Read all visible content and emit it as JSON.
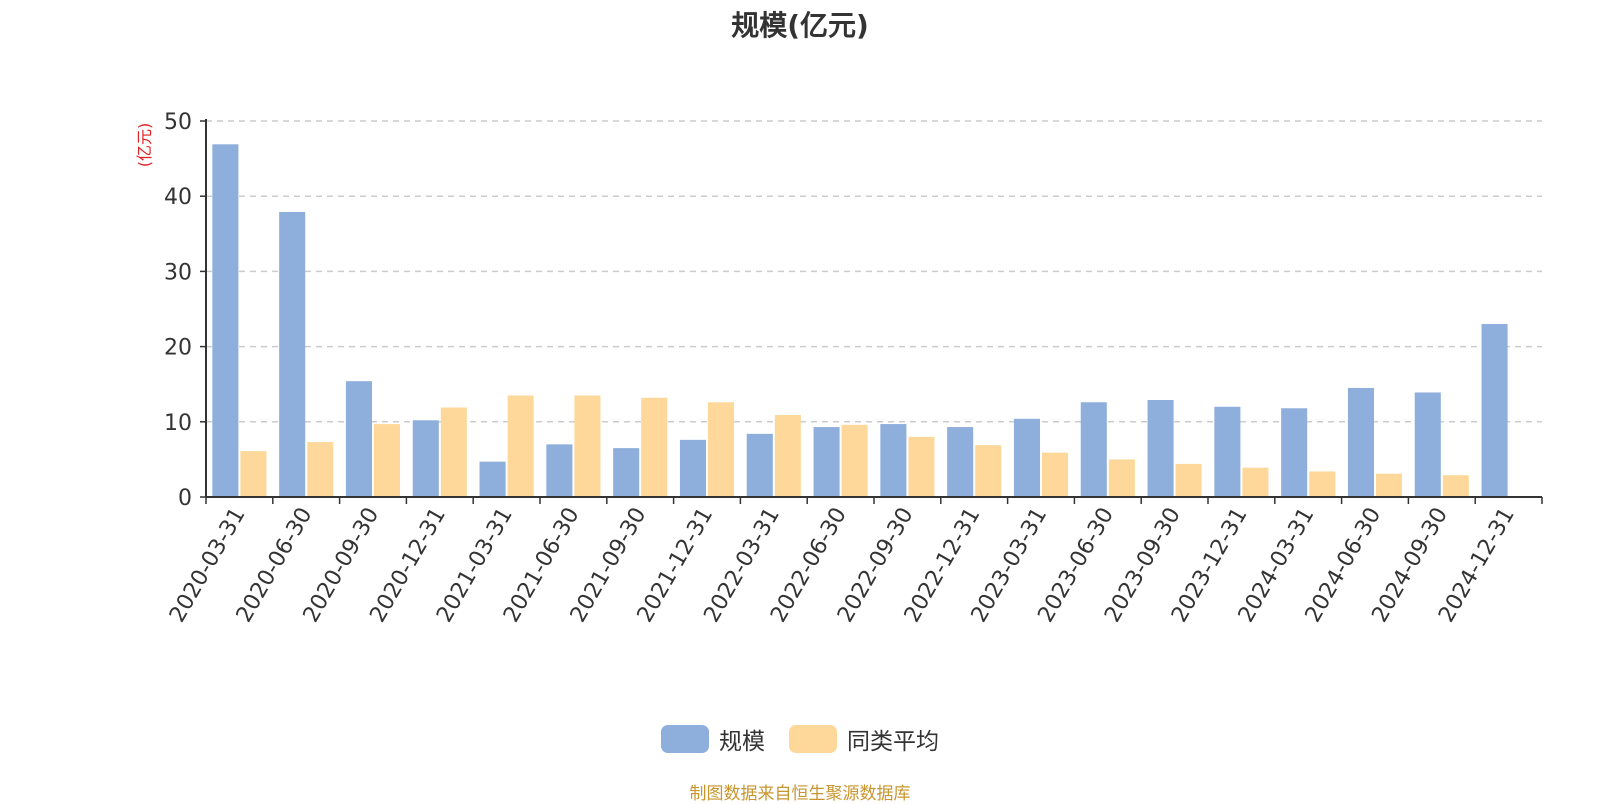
{
  "chart_data": {
    "type": "bar",
    "title": "规模(亿元)",
    "ylabel": "(亿元)",
    "xlabel": "",
    "ylim": [
      0,
      50
    ],
    "yticks": [
      0,
      10,
      20,
      30,
      40,
      50
    ],
    "grid": true,
    "legend_position": "bottom-center",
    "categories": [
      "2020-03-31",
      "2020-06-30",
      "2020-09-30",
      "2020-12-31",
      "2021-03-31",
      "2021-06-30",
      "2021-09-30",
      "2021-12-31",
      "2022-03-31",
      "2022-06-30",
      "2022-09-30",
      "2022-12-31",
      "2023-03-31",
      "2023-06-30",
      "2023-09-30",
      "2023-12-31",
      "2024-03-31",
      "2024-06-30",
      "2024-09-30",
      "2024-12-31"
    ],
    "series": [
      {
        "name": "规模",
        "color": "#8eaedb",
        "values": [
          46.9,
          37.9,
          15.4,
          10.2,
          4.7,
          7.0,
          6.5,
          7.6,
          8.4,
          9.3,
          9.7,
          9.3,
          10.4,
          12.6,
          12.9,
          12.0,
          11.8,
          14.5,
          13.9,
          23.0
        ]
      },
      {
        "name": "同类平均",
        "color": "#fdd89a",
        "values": [
          6.1,
          7.3,
          9.7,
          11.9,
          13.5,
          13.5,
          13.2,
          12.6,
          10.9,
          9.6,
          8.0,
          6.9,
          5.9,
          5.0,
          4.4,
          3.9,
          3.4,
          3.1,
          2.9,
          null
        ]
      }
    ],
    "source_note": "制图数据来自恒生聚源数据库"
  }
}
